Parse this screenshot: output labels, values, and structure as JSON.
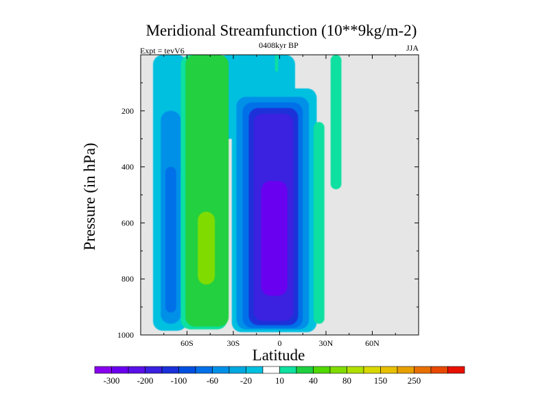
{
  "chart_data": {
    "type": "heatmap",
    "title": "Meridional Streamfunction (10**9kg/m-2)",
    "subtitle_left": "Expt = tevV6",
    "subtitle_center": "0408kyr BP",
    "subtitle_right": "JJA",
    "xlabel": "Latitude",
    "ylabel": "Pressure (in hPa)",
    "xlim": [
      -90,
      90
    ],
    "ylim": [
      1000,
      0
    ],
    "xticks": [
      {
        "value": -60,
        "label": "60S"
      },
      {
        "value": -30,
        "label": "30S"
      },
      {
        "value": 0,
        "label": "0"
      },
      {
        "value": 30,
        "label": "30N"
      },
      {
        "value": 60,
        "label": "60N"
      }
    ],
    "yticks": [
      {
        "value": 200,
        "label": "200"
      },
      {
        "value": 400,
        "label": "400"
      },
      {
        "value": 600,
        "label": "600"
      },
      {
        "value": 800,
        "label": "800"
      },
      {
        "value": 1000,
        "label": "1000"
      }
    ],
    "missing_color": "#e6e6e6",
    "colorbar": {
      "colors": [
        "#8800ee",
        "#6a00f0",
        "#5a10e8",
        "#3a20e0",
        "#1a30d8",
        "#0050e0",
        "#0070e8",
        "#0090e8",
        "#00a8e0",
        "#00c0e0",
        "#ffffff",
        "#10e0a0",
        "#20d040",
        "#50d800",
        "#80dc00",
        "#b0e000",
        "#d8d800",
        "#e8c000",
        "#e8a000",
        "#e87000",
        "#e84800",
        "#e81000"
      ],
      "labels": [
        {
          "after": 1,
          "text": "-300"
        },
        {
          "after": 3,
          "text": "-200"
        },
        {
          "after": 5,
          "text": "-100"
        },
        {
          "after": 7,
          "text": "-60"
        },
        {
          "after": 9,
          "text": "-20"
        },
        {
          "after": 11,
          "text": "10"
        },
        {
          "after": 13,
          "text": "40"
        },
        {
          "after": 15,
          "text": "80"
        },
        {
          "after": 17,
          "text": "150"
        },
        {
          "after": 19,
          "text": "250"
        }
      ]
    },
    "features": [
      {
        "name": "southern-cell-outer",
        "level": "-20",
        "color": "#00c0e0",
        "lat_range": [
          -82,
          -60
        ],
        "p_range": [
          0,
          985
        ]
      },
      {
        "name": "southern-cell-inner",
        "level": "-60",
        "color": "#0090e8",
        "lat_range": [
          -77,
          -64
        ],
        "p_range": [
          200,
          960
        ]
      },
      {
        "name": "southern-cell-core",
        "level": "-100",
        "color": "#0070e8",
        "lat_range": [
          -74,
          -67
        ],
        "p_range": [
          400,
          920
        ]
      },
      {
        "name": "ferrel-upper-outer",
        "level": "-20",
        "color": "#00c0e0",
        "lat_range": [
          -40,
          10
        ],
        "p_range": [
          0,
          300
        ]
      },
      {
        "name": "ferrel-outer",
        "level": "10",
        "color": "#10e0a0",
        "lat_range": [
          -64,
          -34
        ],
        "p_range": [
          0,
          980
        ]
      },
      {
        "name": "ferrel-mid",
        "level": "40",
        "color": "#20d040",
        "lat_range": [
          -61,
          -33
        ],
        "p_range": [
          0,
          970
        ]
      },
      {
        "name": "ferrel-core",
        "level": "80",
        "color": "#80dc00",
        "lat_range": [
          -53,
          -42
        ],
        "p_range": [
          560,
          820
        ]
      },
      {
        "name": "hadley-outer",
        "level": "-20",
        "color": "#00c0e0",
        "lat_range": [
          -31,
          24
        ],
        "p_range": [
          120,
          990
        ]
      },
      {
        "name": "hadley-l60",
        "level": "-60",
        "color": "#0090e8",
        "lat_range": [
          -28,
          19
        ],
        "p_range": [
          150,
          980
        ]
      },
      {
        "name": "hadley-l100",
        "level": "-100",
        "color": "#0070e8",
        "lat_range": [
          -24,
          15
        ],
        "p_range": [
          170,
          975
        ]
      },
      {
        "name": "hadley-l150",
        "level": "-150",
        "color": "#1a30d8",
        "lat_range": [
          -20,
          12
        ],
        "p_range": [
          190,
          965
        ]
      },
      {
        "name": "hadley-l200",
        "level": "-200",
        "color": "#3a20e0",
        "lat_range": [
          -17,
          9
        ],
        "p_range": [
          210,
          950
        ]
      },
      {
        "name": "hadley-core",
        "level": "-300",
        "color": "#6a00f0",
        "lat_range": [
          -12,
          5
        ],
        "p_range": [
          450,
          860
        ]
      },
      {
        "name": "north-strip-upper",
        "level": "10",
        "color": "#10e0a0",
        "lat_range": [
          33,
          40
        ],
        "p_range": [
          0,
          480
        ]
      },
      {
        "name": "north-strip-lower",
        "level": "10",
        "color": "#10e0a0",
        "lat_range": [
          22,
          29
        ],
        "p_range": [
          240,
          960
        ]
      },
      {
        "name": "equator-strip",
        "level": "10",
        "color": "#10e0a0",
        "lat_range": [
          -3,
          -1
        ],
        "p_range": [
          0,
          60
        ]
      }
    ]
  }
}
